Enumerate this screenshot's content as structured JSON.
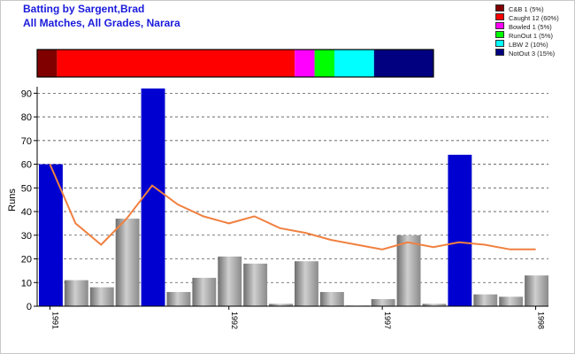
{
  "header": {
    "title": "Batting by Sargent,Brad",
    "subtitle": "All Matches, All Grades, Narara"
  },
  "legend": [
    {
      "label": "C&B 1 (5%)",
      "color": "#800000"
    },
    {
      "label": "Caught 12 (60%)",
      "color": "#ff0000"
    },
    {
      "label": "Bowled 1 (5%)",
      "color": "#ff00ff"
    },
    {
      "label": "RunOut 1 (5%)",
      "color": "#00ff00"
    },
    {
      "label": "LBW 2 (10%)",
      "color": "#00ffff"
    },
    {
      "label": "NotOut 3 (15%)",
      "color": "#000080"
    }
  ],
  "dismissal_breakdown": [
    {
      "type": "C&B",
      "count": 1,
      "color": "#800000"
    },
    {
      "type": "Caught",
      "count": 12,
      "color": "#ff0000"
    },
    {
      "type": "Bowled",
      "count": 1,
      "color": "#ff00ff"
    },
    {
      "type": "RunOut",
      "count": 1,
      "color": "#00ff00"
    },
    {
      "type": "LBW",
      "count": 2,
      "color": "#00ffff"
    },
    {
      "type": "NotOut",
      "count": 3,
      "color": "#000080"
    }
  ],
  "chart_data": {
    "type": "bar",
    "title": "",
    "xlabel": "",
    "ylabel": "Runs",
    "ylim": [
      0,
      92
    ],
    "yticks": [
      0,
      10,
      20,
      30,
      40,
      50,
      60,
      70,
      80,
      90
    ],
    "grid": true,
    "x_tick_labels": [
      {
        "label": "1991",
        "index": 0
      },
      {
        "label": "1992",
        "index": 7
      },
      {
        "label": "1997",
        "index": 13
      },
      {
        "label": "1998",
        "index": 19
      }
    ],
    "innings": [
      {
        "runs": 60,
        "not_out": true
      },
      {
        "runs": 11,
        "not_out": false
      },
      {
        "runs": 8,
        "not_out": false
      },
      {
        "runs": 37,
        "not_out": false
      },
      {
        "runs": 92,
        "not_out": true
      },
      {
        "runs": 6,
        "not_out": false
      },
      {
        "runs": 12,
        "not_out": false
      },
      {
        "runs": 21,
        "not_out": false
      },
      {
        "runs": 18,
        "not_out": false
      },
      {
        "runs": 1,
        "not_out": false
      },
      {
        "runs": 19,
        "not_out": false
      },
      {
        "runs": 6,
        "not_out": false
      },
      {
        "runs": 0,
        "not_out": false
      },
      {
        "runs": 3,
        "not_out": false
      },
      {
        "runs": 30,
        "not_out": false
      },
      {
        "runs": 1,
        "not_out": false
      },
      {
        "runs": 64,
        "not_out": true
      },
      {
        "runs": 5,
        "not_out": false
      },
      {
        "runs": 4,
        "not_out": false
      },
      {
        "runs": 13,
        "not_out": false
      }
    ],
    "average_line": [
      60,
      35,
      26,
      37,
      51,
      43,
      38,
      35,
      38,
      33,
      31,
      28,
      26,
      24,
      27,
      25,
      27,
      26,
      24,
      24
    ],
    "colors": {
      "not_out_bar": "#0000d0",
      "out_bar": "#a0a0a0",
      "average_line": "#f08040"
    }
  }
}
